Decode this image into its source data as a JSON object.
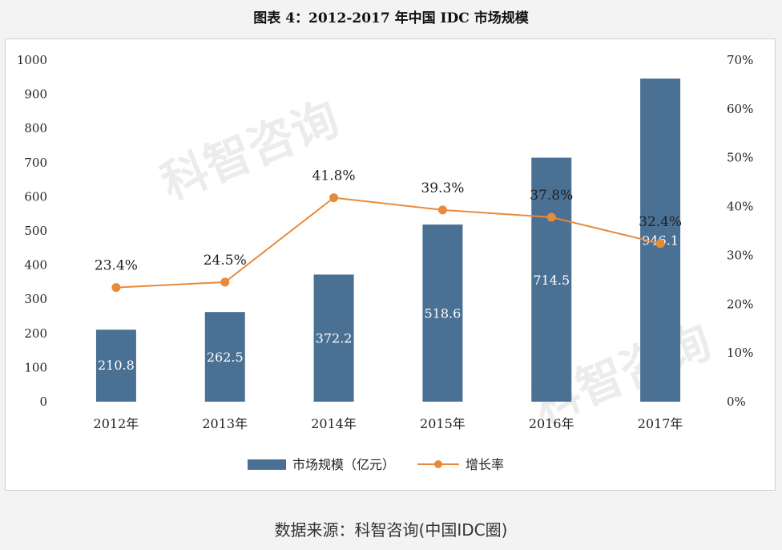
{
  "header": {
    "title": "图表 4：2012-2017 年中国 IDC 市场规模"
  },
  "footer": {
    "source": "数据来源：科智咨询(中国IDC圈)"
  },
  "watermark": {
    "text": "科智咨询"
  },
  "chart_data": {
    "type": "bar",
    "title": "图表 4：2012-2017 年中国 IDC 市场规模",
    "categories": [
      "2012年",
      "2013年",
      "2014年",
      "2015年",
      "2016年",
      "2017年"
    ],
    "series": [
      {
        "name": "市场规模（亿元）",
        "type": "bar",
        "axis": "left",
        "color": "#4a7094",
        "values": [
          210.8,
          262.5,
          372.2,
          518.6,
          714.5,
          946.1
        ],
        "labels": [
          "210.8",
          "262.5",
          "372.2",
          "518.6",
          "714.5",
          "946.1"
        ]
      },
      {
        "name": "增长率",
        "type": "line",
        "axis": "right",
        "color": "#e88a3c",
        "values": [
          23.4,
          24.5,
          41.8,
          39.3,
          37.8,
          32.4
        ],
        "labels": [
          "23.4%",
          "24.5%",
          "41.8%",
          "39.3%",
          "37.8%",
          "32.4%"
        ]
      }
    ],
    "left_axis": {
      "min": 0,
      "max": 1000,
      "step": 100,
      "ticks": [
        "0",
        "100",
        "200",
        "300",
        "400",
        "500",
        "600",
        "700",
        "800",
        "900",
        "1000"
      ]
    },
    "right_axis": {
      "min": 0,
      "max": 70,
      "step": 10,
      "ticks": [
        "0%",
        "10%",
        "20%",
        "30%",
        "40%",
        "50%",
        "60%",
        "70%"
      ]
    },
    "grid": false,
    "legend_position": "bottom"
  }
}
